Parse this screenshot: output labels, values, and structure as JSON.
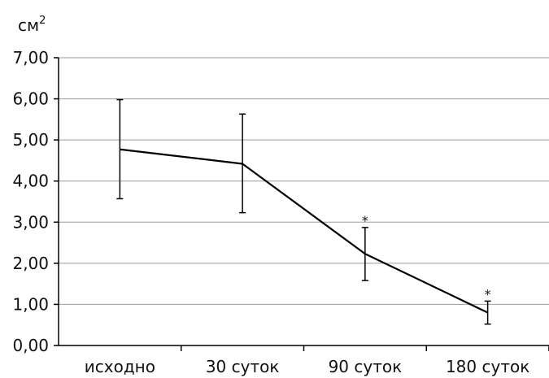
{
  "chart_data": {
    "type": "line",
    "title": "",
    "xlabel": "",
    "ylabel": "см",
    "ylabel_superscript": "2",
    "categories": [
      "исходно",
      "30 суток",
      "90 суток",
      "180 суток"
    ],
    "series": [
      {
        "values": [
          4.77,
          4.42,
          2.23,
          0.8
        ],
        "error_low": [
          3.57,
          3.23,
          1.58,
          0.52
        ],
        "error_high": [
          5.98,
          5.63,
          2.87,
          1.08
        ],
        "annotations": [
          "",
          "",
          "*",
          "*"
        ]
      }
    ],
    "ylim": [
      0,
      7
    ],
    "yticks": [
      "0,00",
      "1,00",
      "2,00",
      "3,00",
      "4,00",
      "5,00",
      "6,00",
      "7,00"
    ],
    "grid": true,
    "legend": "none",
    "colors": {
      "line": "#000000",
      "grid": "#9a9a9a"
    }
  }
}
